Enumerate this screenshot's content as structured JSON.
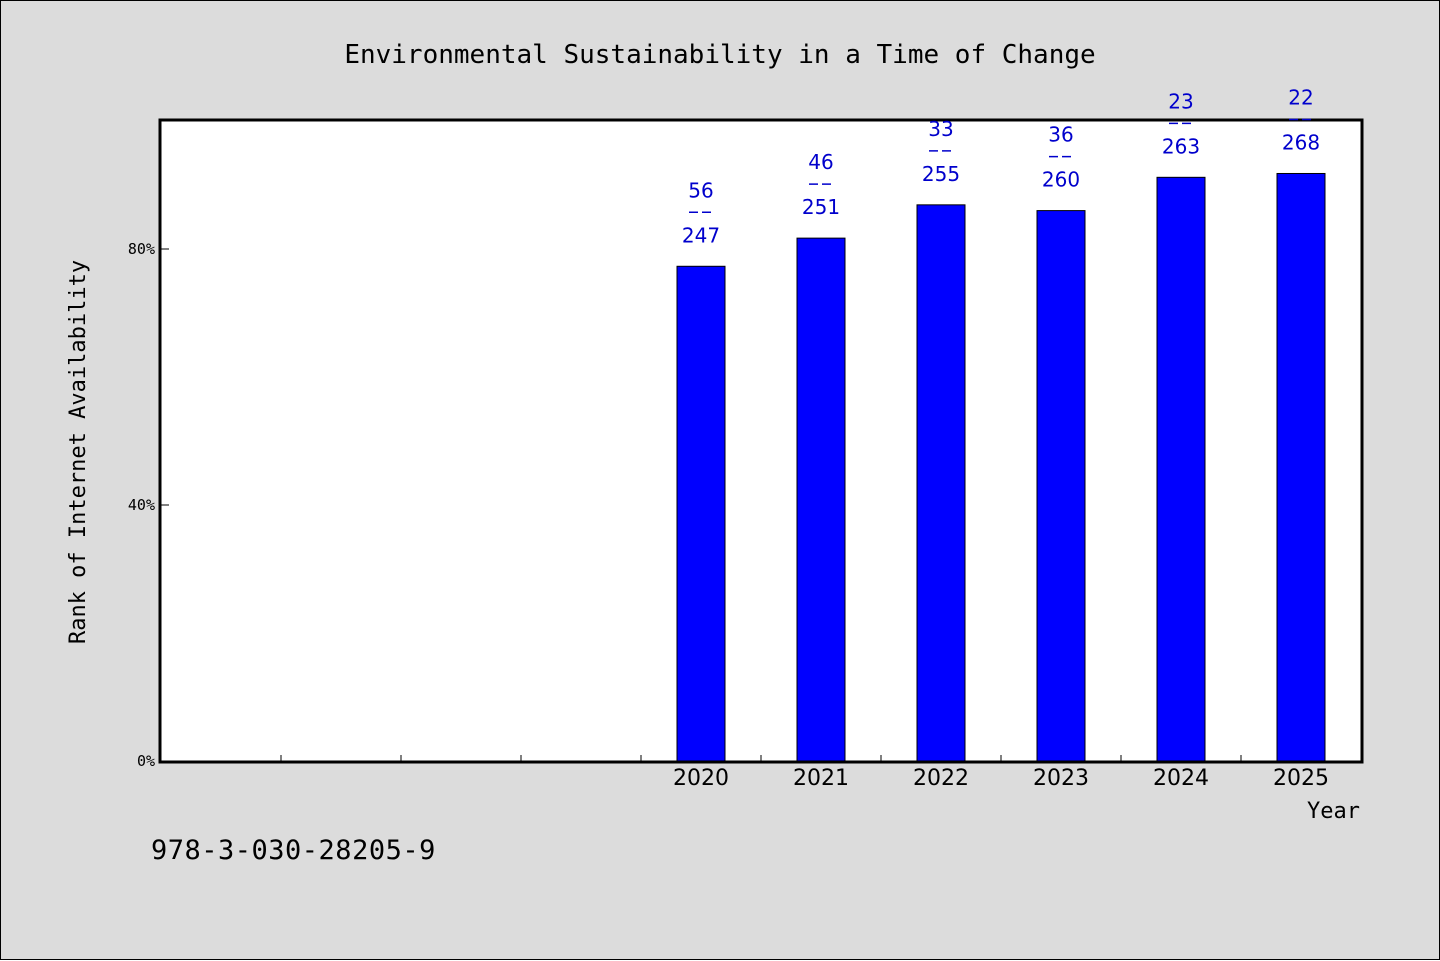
{
  "chart_data": {
    "type": "bar",
    "title": "Environmental Sustainability in a Time of Change",
    "xlabel": "Year",
    "ylabel": "Rank of Internet Availability",
    "categories": [
      "",
      "",
      "",
      "",
      "2020",
      "2021",
      "2022",
      "2023",
      "2024",
      "2025"
    ],
    "values": [
      null,
      null,
      null,
      null,
      77.3,
      81.7,
      86.9,
      86.0,
      91.2,
      91.8
    ],
    "label_top": [
      null,
      null,
      null,
      null,
      "56",
      "46",
      "33",
      "36",
      "23",
      "22"
    ],
    "label_bottom": [
      null,
      null,
      null,
      null,
      "247",
      "251",
      "255",
      "260",
      "263",
      "268"
    ],
    "ylim": [
      0,
      100
    ],
    "yticks": [
      0,
      40,
      80
    ],
    "ytick_labels": [
      "0%",
      "40%",
      "80%"
    ],
    "grid": false,
    "bar_color": "#0000ff",
    "label_color": "#0000cc"
  },
  "footer": {
    "isbn": "978-3-030-28205-9"
  }
}
